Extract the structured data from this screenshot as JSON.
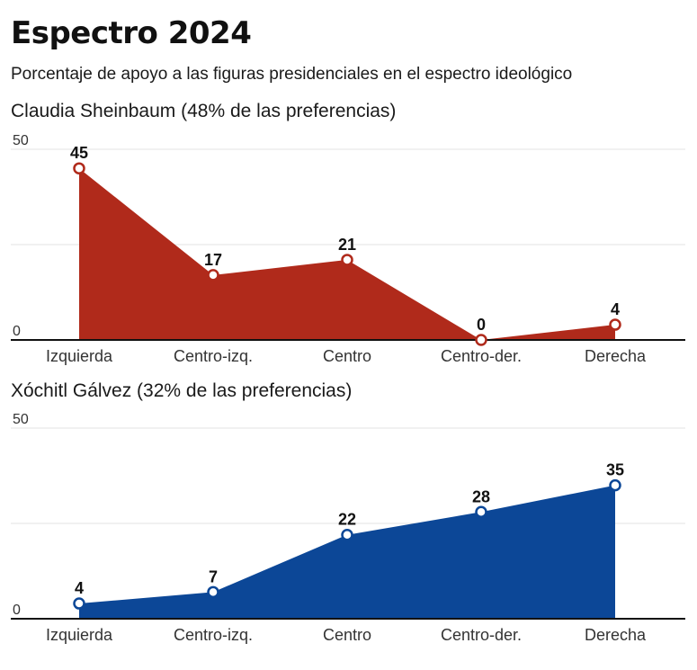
{
  "title": "Espectro 2024",
  "subtitle": "Porcentaje de apoyo a las figuras presidenciales en el espectro ideológico",
  "chart_data": [
    {
      "type": "area",
      "title": "Claudia Sheinbaum (48% de las preferencias)",
      "categories": [
        "Izquierda",
        "Centro-izq.",
        "Centro",
        "Centro-der.",
        "Derecha"
      ],
      "values": [
        45,
        17,
        21,
        0,
        4
      ],
      "ylim": [
        0,
        50
      ],
      "yticks": [
        "0",
        "50"
      ],
      "grid": true,
      "color": "#b02a1b"
    },
    {
      "type": "area",
      "title": "Xóchitl Gálvez (32% de las preferencias)",
      "categories": [
        "Izquierda",
        "Centro-izq.",
        "Centro",
        "Centro-der.",
        "Derecha"
      ],
      "values": [
        4,
        7,
        22,
        28,
        35
      ],
      "ylim": [
        0,
        50
      ],
      "yticks": [
        "0",
        "50"
      ],
      "grid": true,
      "color": "#0c4797"
    }
  ]
}
